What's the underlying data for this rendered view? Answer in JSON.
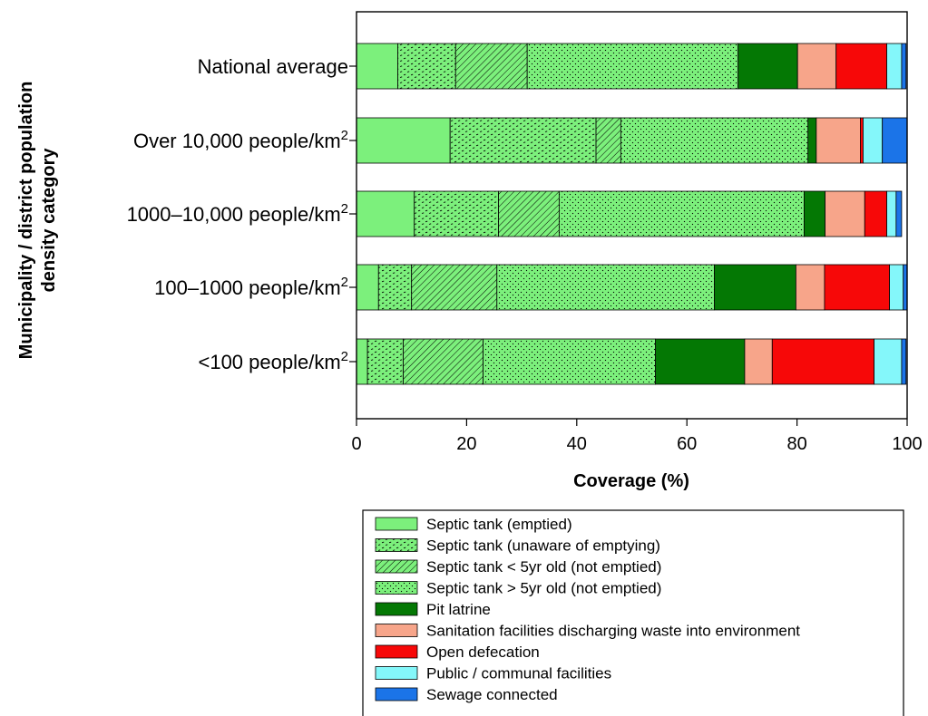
{
  "chart_data": {
    "type": "bar",
    "orientation": "horizontal",
    "stacked": true,
    "title": "",
    "xlabel": "Coverage (%)",
    "ylabel_lines": [
      "Municipality / district population",
      "density category"
    ],
    "xlim": [
      0,
      100
    ],
    "xticks": [
      0,
      20,
      40,
      60,
      80,
      100
    ],
    "grid": false,
    "legend_position": "bottom",
    "categories": [
      {
        "text": "National average",
        "sup": ""
      },
      {
        "text": "Over 10,000 people/km",
        "sup": "2"
      },
      {
        "text": "1000–10,000 people/km",
        "sup": "2"
      },
      {
        "text": "100–1000 people/km",
        "sup": "2"
      },
      {
        "text": "<100 people/km",
        "sup": "2"
      }
    ],
    "series": [
      {
        "name": "Septic tank (emptied)",
        "color": "#7cf07c",
        "pattern": "solid",
        "values": [
          7.5,
          17.0,
          10.5,
          4.0,
          2.0
        ]
      },
      {
        "name": "Septic tank (unaware of emptying)",
        "color": "#7cf07c",
        "pattern": "dash-dots",
        "values": [
          10.5,
          26.5,
          15.3,
          6.0,
          6.5
        ]
      },
      {
        "name": "Septic tank < 5yr old (not emptied)",
        "color": "#7cf07c",
        "pattern": "diagonal-hatch",
        "values": [
          13.0,
          4.5,
          11.0,
          15.5,
          14.5
        ]
      },
      {
        "name": "Septic tank > 5yr old (not emptied)",
        "color": "#7cf07c",
        "pattern": "dots",
        "values": [
          38.3,
          34.0,
          44.5,
          39.5,
          31.3
        ]
      },
      {
        "name": "Pit latrine",
        "color": "#047804",
        "pattern": "solid",
        "values": [
          10.8,
          1.5,
          3.8,
          14.8,
          16.2
        ]
      },
      {
        "name": "Sanitation facilities discharging waste into environment",
        "color": "#f7a58a",
        "pattern": "solid",
        "values": [
          7.0,
          8.0,
          7.2,
          5.2,
          5.0
        ]
      },
      {
        "name": "Open defecation",
        "color": "#f70808",
        "pattern": "solid",
        "values": [
          9.2,
          0.5,
          4.0,
          11.8,
          18.5
        ]
      },
      {
        "name": "Public / communal facilities",
        "color": "#84f7fa",
        "pattern": "solid",
        "values": [
          2.7,
          3.5,
          1.7,
          2.5,
          5.0
        ]
      },
      {
        "name": "Sewage connected",
        "color": "#1b74e8",
        "pattern": "solid",
        "values": [
          0.8,
          4.5,
          1.0,
          0.7,
          0.8
        ]
      }
    ]
  }
}
